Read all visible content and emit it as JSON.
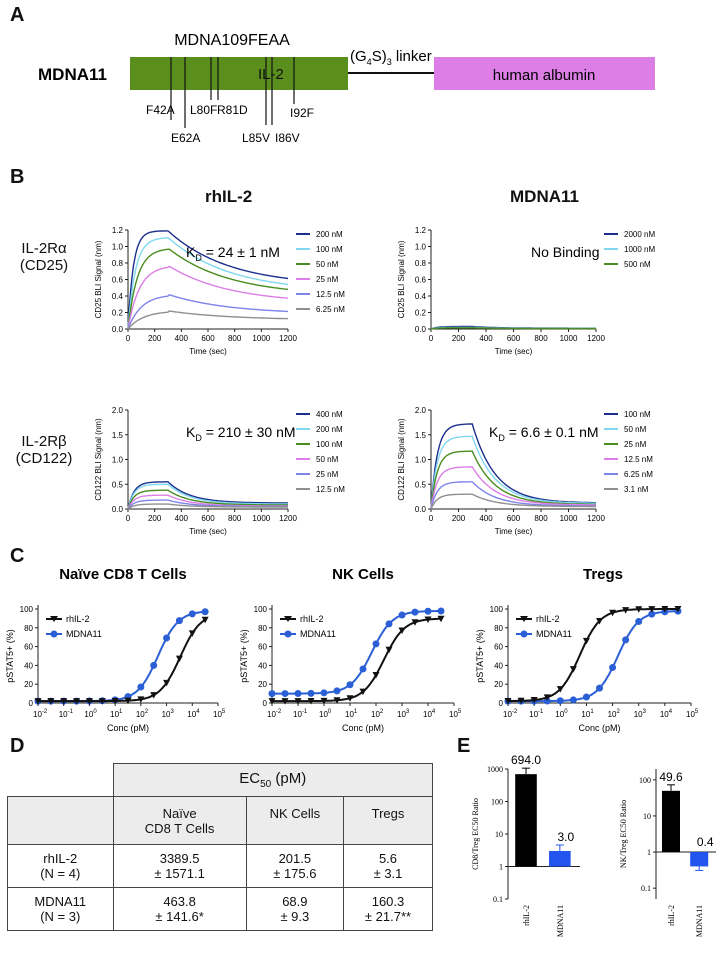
{
  "panelA": {
    "label": "A",
    "construct_name": "MDNA11",
    "variant_name": "MDNA109FEAA",
    "domain_il2": "IL-2",
    "linker": "(G",
    "linker_sub": "4",
    "linker_tail": "S)",
    "linker_sub2": "3",
    "linker_word": "linker",
    "albumin": "human albumin",
    "mutations": [
      "F42A",
      "E62A",
      "L80F",
      "R81D",
      "L85V",
      "I86V",
      "I92F"
    ],
    "colors": {
      "il2": "#5a8f1e",
      "albumin": "#dd7ee6"
    }
  },
  "panelB": {
    "label": "B",
    "col1_title": "rhIL-2",
    "col2_title": "MDNA11",
    "row1_label_a": "IL-2Rα",
    "row1_label_b": "(CD25)",
    "row2_label_a": "IL-2Rβ",
    "row2_label_b": "(CD122)",
    "xlabel": "Time (sec)",
    "charts": [
      {
        "ylabel": "CD25 BLI Signal (nm)",
        "annotation": "K",
        "ann_sub": "D",
        "ann_val": " = 24 ± 1 nM",
        "no_binding": "",
        "ymax": 1.2,
        "yticks": [
          "0.0",
          "0.2",
          "0.4",
          "0.6",
          "0.8",
          "1.0",
          "1.2"
        ],
        "legend": [
          "200 nM",
          "100 nM",
          "50 nM",
          "25 nM",
          "12.5 nM",
          "6.25 nM"
        ],
        "peaks": [
          1.19,
          1.11,
          0.98,
          0.77,
          0.42,
          0.22
        ],
        "ends": [
          0.52,
          0.45,
          0.4,
          0.31,
          0.18,
          0.11
        ]
      },
      {
        "ylabel": "CD25 BLI Signal (nm)",
        "annotation": "",
        "ann_sub": "",
        "ann_val": "",
        "no_binding": "No Binding",
        "ymax": 1.2,
        "yticks": [
          "0.0",
          "0.2",
          "0.4",
          "0.6",
          "0.8",
          "1.0",
          "1.2"
        ],
        "legend": [
          "2000 nM",
          "1000 nM",
          "500 nM"
        ],
        "peaks": [
          0.03,
          0.02,
          0.015
        ],
        "ends": [
          0.01,
          0.008,
          0.006
        ]
      },
      {
        "ylabel": "CD122 BLI Signal (nm)",
        "annotation": "K",
        "ann_sub": "D",
        "ann_val": " = 210 ± 30 nM",
        "no_binding": "",
        "ymax": 2.0,
        "yticks": [
          "0.0",
          "0.5",
          "1.0",
          "1.5",
          "2.0"
        ],
        "legend": [
          "400 nM",
          "200 nM",
          "100 nM",
          "50 nM",
          "25 nM",
          "12.5 nM"
        ],
        "peaks": [
          0.55,
          0.5,
          0.38,
          0.28,
          0.18,
          0.1
        ],
        "ends": [
          0.12,
          0.1,
          0.08,
          0.06,
          0.05,
          0.04
        ]
      },
      {
        "ylabel": "CD122 BLI Signal (nm)",
        "annotation": "K",
        "ann_sub": "D",
        "ann_val": " = 6.6 ± 0.1 nM",
        "no_binding": "",
        "ymax": 2.0,
        "yticks": [
          "0.0",
          "0.5",
          "1.0",
          "1.5",
          "2.0"
        ],
        "legend": [
          "100 nM",
          "50 nM",
          "25 nM",
          "12.5 nM",
          "6.25 nM",
          "3.1 nM"
        ],
        "peaks": [
          1.72,
          1.47,
          1.17,
          0.85,
          0.55,
          0.3
        ],
        "ends": [
          0.12,
          0.11,
          0.09,
          0.08,
          0.06,
          0.05
        ]
      }
    ],
    "xticks": [
      "0",
      "200",
      "400",
      "600",
      "800",
      "1000",
      "1200"
    ],
    "series_colors": [
      "#1c2f8c",
      "#7fd8ef",
      "#4a8c20",
      "#dd7ee6",
      "#7d84ea",
      "#8f8f8f"
    ]
  },
  "panelC": {
    "label": "C",
    "ylabel": "pSTAT5+ (%)",
    "xlabel": "Conc (pM)",
    "legend_a": "rhIL-2",
    "legend_b": "MDNA11",
    "yticks": [
      "0",
      "20",
      "40",
      "60",
      "80",
      "100"
    ],
    "xticks": [
      "10",
      "10",
      "10",
      "10",
      "10",
      "10",
      "10",
      "10"
    ],
    "xtick_exp": [
      "-2",
      "-1",
      "0",
      "1",
      "2",
      "3",
      "4",
      "5"
    ],
    "charts": [
      {
        "title": "Naïve CD8 T Cells",
        "rhil2_ec50": 3389.5,
        "mdna11_ec50": 463.8,
        "rhil2_bottom": 2,
        "mdna11_bottom": 2,
        "rhil2_top": 96,
        "mdna11_top": 98
      },
      {
        "title": "NK Cells",
        "rhil2_ec50": 201.5,
        "mdna11_ec50": 68.9,
        "rhil2_bottom": 2,
        "mdna11_bottom": 10,
        "rhil2_top": 90,
        "mdna11_top": 98
      },
      {
        "title": "Tregs",
        "rhil2_ec50": 5.6,
        "mdna11_ec50": 160.3,
        "rhil2_bottom": 2,
        "mdna11_bottom": 2,
        "rhil2_top": 100,
        "mdna11_top": 98
      }
    ]
  },
  "panelD": {
    "label": "D",
    "ec50_header": "EC",
    "ec50_sub": "50",
    "ec50_unit": " (pM)",
    "cols": [
      [
        "Naïve",
        "CD8 T Cells"
      ],
      [
        "NK Cells",
        ""
      ],
      [
        "Tregs",
        ""
      ]
    ],
    "rows": [
      {
        "name": [
          "rhIL-2",
          "(N = 4)"
        ],
        "values": [
          [
            "3389.5",
            "± 1571.1"
          ],
          [
            "201.5",
            "± 175.6"
          ],
          [
            "5.6",
            "± 3.1"
          ]
        ]
      },
      {
        "name": [
          "MDNA11",
          "(N = 3)"
        ],
        "values": [
          [
            "463.8",
            "± 141.6*"
          ],
          [
            "68.9",
            "± 9.3"
          ],
          [
            "160.3",
            "± 21.7**"
          ]
        ]
      }
    ]
  },
  "panelE": {
    "label": "E",
    "charts": [
      {
        "ylabel": "CD8/Treg EC50 Ratio",
        "yticks": [
          "0.1",
          "1",
          "10",
          "100",
          "1000"
        ],
        "categories": [
          "rhIL-2",
          "MDNA11"
        ],
        "values": [
          694.0,
          3.0
        ],
        "value_labels": [
          "694.0",
          "3.0"
        ],
        "colors": [
          "#000000",
          "#2255ee"
        ]
      },
      {
        "ylabel": "NK/Treg EC50 Ratio",
        "yticks": [
          "0.1",
          "1",
          "10",
          "100"
        ],
        "categories": [
          "rhIL-2",
          "MDNA11"
        ],
        "values": [
          49.6,
          0.4
        ],
        "value_labels": [
          "49.6",
          "0.4"
        ],
        "colors": [
          "#000000",
          "#2255ee"
        ]
      }
    ]
  },
  "chart_data": [
    {
      "type": "line",
      "title": "rhIL-2 IL-2Rα (CD25)",
      "xlabel": "Time (sec)",
      "ylabel": "CD25 BLI Signal (nm)",
      "ylim": [
        0,
        1.2
      ],
      "xlim": [
        0,
        1200
      ],
      "annotation": "KD = 24 ± 1 nM",
      "series": [
        {
          "name": "200 nM",
          "peak": 1.19
        },
        {
          "name": "100 nM",
          "peak": 1.11
        },
        {
          "name": "50 nM",
          "peak": 0.98
        },
        {
          "name": "25 nM",
          "peak": 0.77
        },
        {
          "name": "12.5 nM",
          "peak": 0.42
        },
        {
          "name": "6.25 nM",
          "peak": 0.22
        }
      ]
    },
    {
      "type": "line",
      "title": "MDNA11 IL-2Rα (CD25)",
      "xlabel": "Time (sec)",
      "ylabel": "CD25 BLI Signal (nm)",
      "ylim": [
        0,
        1.2
      ],
      "xlim": [
        0,
        1200
      ],
      "annotation": "No Binding",
      "series": [
        {
          "name": "2000 nM",
          "peak": 0.03
        },
        {
          "name": "1000 nM",
          "peak": 0.02
        },
        {
          "name": "500 nM",
          "peak": 0.015
        }
      ]
    },
    {
      "type": "line",
      "title": "rhIL-2 IL-2Rβ (CD122)",
      "xlabel": "Time (sec)",
      "ylabel": "CD122 BLI Signal (nm)",
      "ylim": [
        0,
        2.0
      ],
      "xlim": [
        0,
        1200
      ],
      "annotation": "KD = 210 ± 30 nM",
      "series": [
        {
          "name": "400 nM",
          "peak": 0.55
        },
        {
          "name": "200 nM",
          "peak": 0.5
        },
        {
          "name": "100 nM",
          "peak": 0.38
        },
        {
          "name": "50 nM",
          "peak": 0.28
        },
        {
          "name": "25 nM",
          "peak": 0.18
        },
        {
          "name": "12.5 nM",
          "peak": 0.1
        }
      ]
    },
    {
      "type": "line",
      "title": "MDNA11 IL-2Rβ (CD122)",
      "xlabel": "Time (sec)",
      "ylabel": "CD122 BLI Signal (nm)",
      "ylim": [
        0,
        2.0
      ],
      "xlim": [
        0,
        1200
      ],
      "annotation": "KD = 6.6 ± 0.1 nM",
      "series": [
        {
          "name": "100 nM",
          "peak": 1.72
        },
        {
          "name": "50 nM",
          "peak": 1.47
        },
        {
          "name": "25 nM",
          "peak": 1.17
        },
        {
          "name": "12.5 nM",
          "peak": 0.85
        },
        {
          "name": "6.25 nM",
          "peak": 0.55
        },
        {
          "name": "3.1 nM",
          "peak": 0.3
        }
      ]
    },
    {
      "type": "scatter",
      "title": "Naïve CD8 T Cells",
      "xlabel": "Conc (pM)",
      "ylabel": "pSTAT5+ (%)",
      "ylim": [
        0,
        100
      ],
      "series": [
        {
          "name": "rhIL-2",
          "ec50": 3389.5
        },
        {
          "name": "MDNA11",
          "ec50": 463.8
        }
      ]
    },
    {
      "type": "scatter",
      "title": "NK Cells",
      "xlabel": "Conc (pM)",
      "ylabel": "pSTAT5+ (%)",
      "ylim": [
        0,
        100
      ],
      "series": [
        {
          "name": "rhIL-2",
          "ec50": 201.5
        },
        {
          "name": "MDNA11",
          "ec50": 68.9
        }
      ]
    },
    {
      "type": "scatter",
      "title": "Tregs",
      "xlabel": "Conc (pM)",
      "ylabel": "pSTAT5+ (%)",
      "ylim": [
        0,
        100
      ],
      "series": [
        {
          "name": "rhIL-2",
          "ec50": 5.6
        },
        {
          "name": "MDNA11",
          "ec50": 160.3
        }
      ]
    },
    {
      "type": "bar",
      "title": "CD8/Treg EC50 Ratio",
      "categories": [
        "rhIL-2",
        "MDNA11"
      ],
      "values": [
        694.0,
        3.0
      ],
      "ylabel": "CD8/Treg EC50 Ratio",
      "ylim": [
        0.1,
        1000
      ]
    },
    {
      "type": "bar",
      "title": "NK/Treg EC50 Ratio",
      "categories": [
        "rhIL-2",
        "MDNA11"
      ],
      "values": [
        49.6,
        0.4
      ],
      "ylabel": "NK/Treg EC50 Ratio",
      "ylim": [
        0.05,
        200
      ]
    }
  ]
}
